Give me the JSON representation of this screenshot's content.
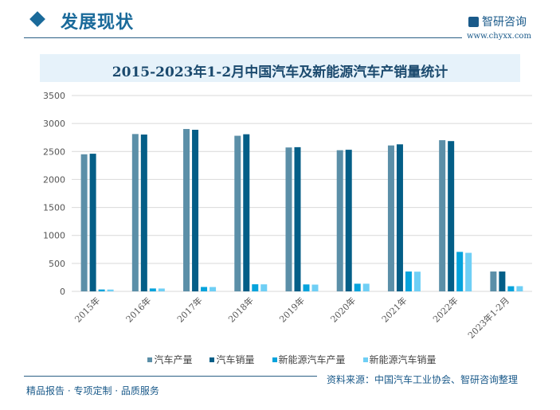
{
  "header": {
    "section_title": "发展现状",
    "brand_name": "智研咨询",
    "brand_url": "www.chyxx.com"
  },
  "chart_data": {
    "type": "bar",
    "title": "2015-2023年1-2月中国汽车及新能源汽车产销量统计",
    "categories": [
      "2015年",
      "2016年",
      "2017年",
      "2018年",
      "2019年",
      "2020年",
      "2021年",
      "2022年",
      "2023年1-2月"
    ],
    "series": [
      {
        "name": "汽车产量",
        "color": "#5b8fa8",
        "values": [
          2450,
          2812,
          2902,
          2781,
          2572,
          2523,
          2608,
          2702,
          355
        ]
      },
      {
        "name": "汽车销量",
        "color": "#045e87",
        "values": [
          2460,
          2803,
          2888,
          2808,
          2577,
          2531,
          2628,
          2686,
          355
        ]
      },
      {
        "name": "新能源汽车产量",
        "color": "#06a3dc",
        "values": [
          34,
          52,
          79,
          127,
          124,
          137,
          355,
          706,
          92
        ]
      },
      {
        "name": "新能源汽车销量",
        "color": "#6fcff5",
        "values": [
          33,
          51,
          78,
          126,
          121,
          137,
          352,
          689,
          93
        ]
      }
    ],
    "ylim": [
      0,
      3500
    ],
    "yticks": [
      0,
      500,
      1000,
      1500,
      2000,
      2500,
      3000,
      3500
    ],
    "grid": true,
    "legend": "bottom"
  },
  "footer": {
    "source": "资料来源：中国汽车工业协会、智研咨询整理",
    "slogan": "精品报告 · 专项定制 · 品质服务"
  }
}
